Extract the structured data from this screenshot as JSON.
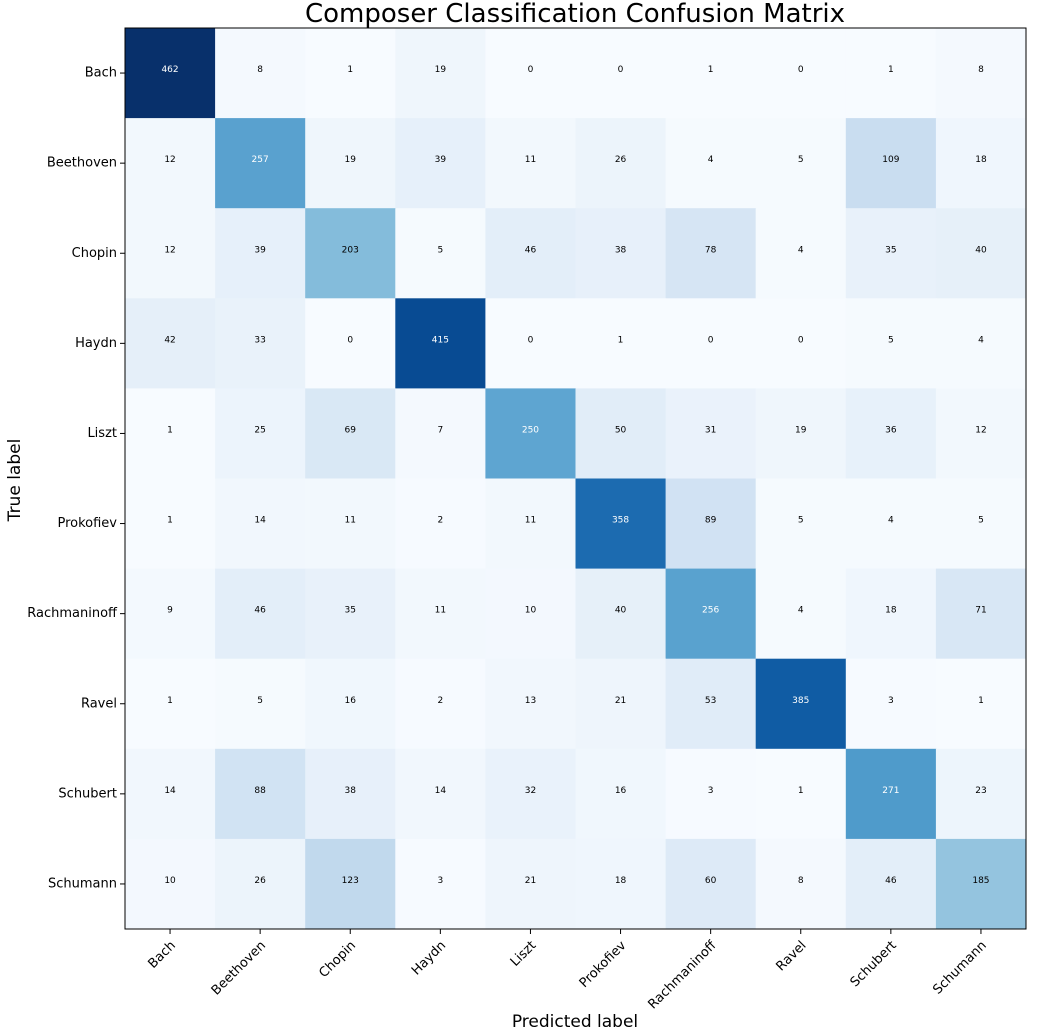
{
  "chart_data": {
    "type": "heatmap",
    "title": "Composer Classification Confusion Matrix",
    "xlabel": "Predicted label",
    "ylabel": "True label",
    "colormap": "Blues",
    "color_low": "#f7fbff",
    "color_high": "#08306b",
    "row_labels": [
      "Bach",
      "Beethoven",
      "Chopin",
      "Haydn",
      "Liszt",
      "Prokofiev",
      "Rachmaninoff",
      "Ravel",
      "Schubert",
      "Schumann"
    ],
    "col_labels": [
      "Bach",
      "Beethoven",
      "Chopin",
      "Haydn",
      "Liszt",
      "Prokofiev",
      "Rachmaninoff",
      "Ravel",
      "Schubert",
      "Schumann"
    ],
    "values": [
      [
        462,
        8,
        1,
        19,
        0,
        0,
        1,
        0,
        1,
        8
      ],
      [
        12,
        257,
        19,
        39,
        11,
        26,
        4,
        5,
        109,
        18
      ],
      [
        12,
        39,
        203,
        5,
        46,
        38,
        78,
        4,
        35,
        40
      ],
      [
        42,
        33,
        0,
        415,
        0,
        1,
        0,
        0,
        5,
        4
      ],
      [
        1,
        25,
        69,
        7,
        250,
        50,
        31,
        19,
        36,
        12
      ],
      [
        1,
        14,
        11,
        2,
        11,
        358,
        89,
        5,
        4,
        5
      ],
      [
        9,
        46,
        35,
        11,
        10,
        40,
        256,
        4,
        18,
        71
      ],
      [
        1,
        5,
        16,
        2,
        13,
        21,
        53,
        385,
        3,
        1
      ],
      [
        14,
        88,
        38,
        14,
        32,
        16,
        3,
        1,
        271,
        23
      ],
      [
        10,
        26,
        123,
        3,
        21,
        18,
        60,
        8,
        46,
        185
      ]
    ]
  }
}
